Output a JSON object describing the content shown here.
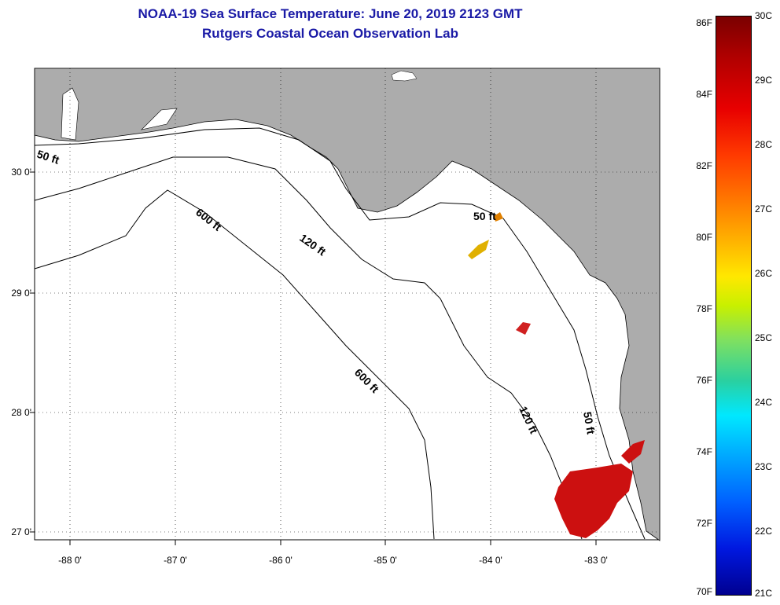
{
  "title": {
    "line1": "NOAA-19 Sea Surface Temperature:  June 20, 2019 2123 GMT",
    "line2": "Rutgers Coastal Ocean Observation Lab"
  },
  "axes": {
    "lat_labels": [
      "30 0'",
      "29 0'",
      "28 0'",
      "27 0'"
    ],
    "lon_labels": [
      "-88 0'",
      "-87 0'",
      "-86 0'",
      "-85 0'",
      "-84 0'",
      "-83 0'"
    ]
  },
  "isobaths": {
    "a": "50 ft",
    "b": "600 ft",
    "c": "120 ft",
    "d": "50 ft",
    "e": "600 ft",
    "f": "120 ft",
    "g": "50 ft"
  },
  "colorbar": {
    "fahrenheit": [
      "86F",
      "84F",
      "82F",
      "80F",
      "78F",
      "76F",
      "74F",
      "72F",
      "70F"
    ],
    "celsius": [
      "30C",
      "29C",
      "28C",
      "27C",
      "26C",
      "25C",
      "24C",
      "23C",
      "22C",
      "21C"
    ]
  },
  "colors": {
    "land": "#acacac",
    "water": "#ffffff",
    "title_text": "#1a1aa6",
    "warm_sst": "#cc1010"
  }
}
